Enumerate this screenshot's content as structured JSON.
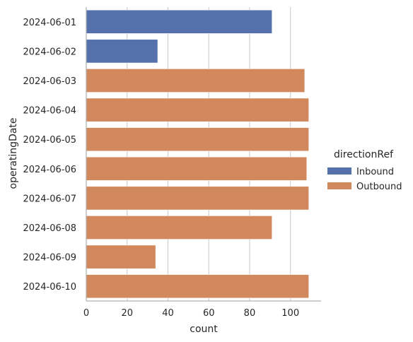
{
  "chart_data": {
    "type": "bar",
    "orientation": "horizontal",
    "xlabel": "count",
    "ylabel": "operatingDate",
    "xlim": [
      0,
      115
    ],
    "xticks": [
      0,
      20,
      40,
      60,
      80,
      100
    ],
    "grid": "vertical",
    "legend": {
      "title": "directionRef",
      "placement": "right"
    },
    "categories": [
      "2024-06-01",
      "2024-06-02",
      "2024-06-03",
      "2024-06-04",
      "2024-06-05",
      "2024-06-06",
      "2024-06-07",
      "2024-06-08",
      "2024-06-09",
      "2024-06-10"
    ],
    "series": [
      {
        "name": "Inbound",
        "color": "#5471ab",
        "values": [
          91,
          35,
          null,
          null,
          null,
          null,
          null,
          null,
          null,
          null
        ]
      },
      {
        "name": "Outbound",
        "color": "#d1885c",
        "values": [
          null,
          null,
          107,
          109,
          109,
          108,
          109,
          91,
          34,
          109
        ]
      }
    ]
  }
}
